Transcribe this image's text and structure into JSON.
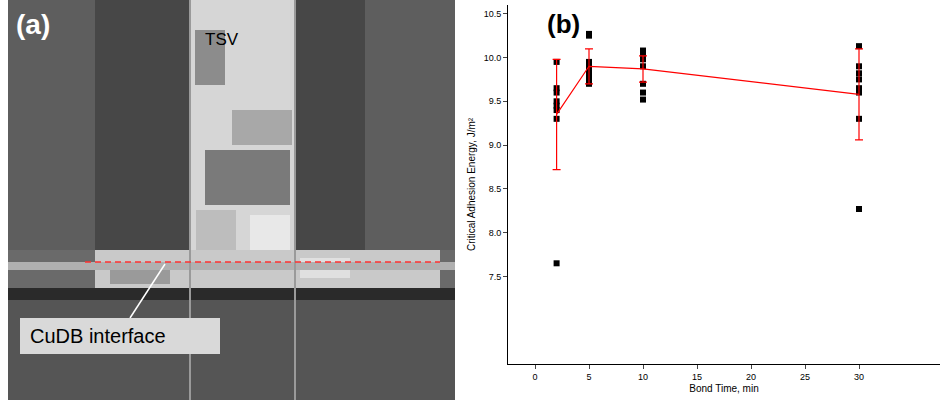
{
  "image_panel": {
    "label": "(a)",
    "texts": [
      "TSV",
      "CuDB interface"
    ]
  },
  "chart_data": {
    "type": "scatter",
    "annotations": [
      "(b)"
    ],
    "x_label": "Bond Time, min",
    "y_label": "Critical Adhesion Energy, J/m²",
    "xlim": [
      -2.5,
      37.5
    ],
    "xticks": [
      0,
      5,
      10,
      15,
      20,
      25,
      30
    ],
    "ylim": [
      6.5,
      10.6
    ],
    "yticks": [
      7.5,
      8.0,
      8.5,
      9.0,
      9.5,
      10.0,
      10.5
    ],
    "grid": false,
    "series": [
      {
        "type": "scatter",
        "marker": "square",
        "color": "#000000",
        "x": [
          2,
          2,
          2,
          2,
          2,
          2,
          2,
          2,
          5,
          5,
          5,
          5,
          5,
          5,
          5,
          5,
          10,
          10,
          10,
          10,
          10,
          10,
          10,
          30,
          30,
          30,
          30,
          30,
          30,
          30,
          30
        ],
        "values": [
          9.95,
          9.65,
          9.6,
          9.5,
          9.45,
          9.4,
          9.3,
          7.65,
          10.27,
          10.25,
          9.95,
          9.9,
          9.85,
          9.8,
          9.75,
          9.7,
          10.08,
          10.02,
          9.98,
          9.9,
          9.7,
          9.6,
          9.52,
          10.13,
          9.9,
          9.82,
          9.75,
          9.65,
          9.6,
          9.3,
          8.27
        ]
      },
      {
        "type": "line",
        "marker": "none",
        "line_style": "solid",
        "color": "#ff0000",
        "x": [
          2,
          5,
          10,
          30
        ],
        "values": [
          9.35,
          9.9,
          9.87,
          9.58
        ],
        "error": [
          0.63,
          0.2,
          0.15,
          0.52
        ]
      }
    ]
  }
}
